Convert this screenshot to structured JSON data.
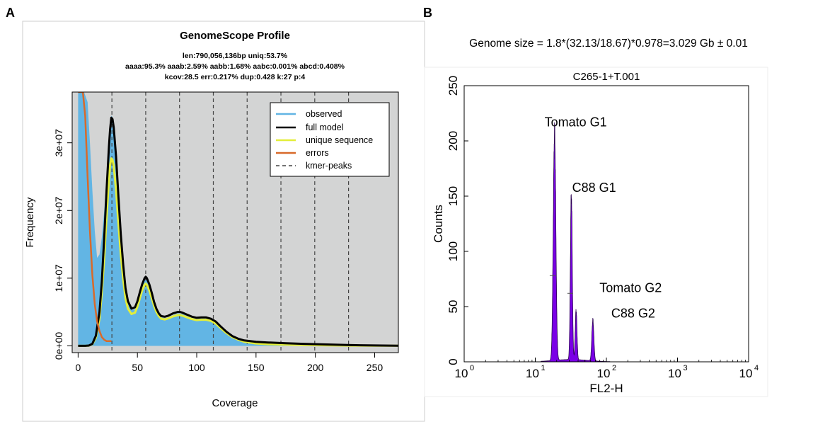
{
  "panels": {
    "a_letter": "A",
    "b_letter": "B"
  },
  "colors": {
    "observed": "#62b5e4",
    "full_model": "#000000",
    "unique_sequence": "#e3ee3a",
    "errors": "#d86a2a",
    "kmer_peaks": "#444444",
    "plot_bg": "#d3d4d4",
    "histogram": "#7a00e6",
    "histogram_edge": "#2a0050"
  },
  "chart_data": [
    {
      "type": "line",
      "title": "GenomeScope Profile",
      "info_lines": [
        "len:790,056,136bp uniq:53.7%",
        "aaaa:95.3% aaab:2.59% aabb:1.68% aabc:0.001% abcd:0.408%",
        "kcov:28.5 err:0.217%  dup:0.428  k:27 p:4"
      ],
      "xlabel": "Coverage",
      "ylabel": "Frequency",
      "xlim": [
        -5,
        270
      ],
      "ylim": [
        -1000000,
        37500000
      ],
      "xticks": [
        0,
        50,
        100,
        150,
        200,
        250
      ],
      "xtick_labels": [
        "0",
        "50",
        "100",
        "150",
        "200",
        "250"
      ],
      "yticks": [
        0,
        10000000,
        20000000,
        30000000
      ],
      "ytick_labels": [
        "0e+00",
        "1e+07",
        "2e+07",
        "3e+07"
      ],
      "grid": false,
      "legend_position": "top-right",
      "legend": [
        "observed",
        "full model",
        "unique sequence",
        "errors",
        "kmer-peaks"
      ],
      "kmer_peaks": [
        28.5,
        57,
        85.5,
        114,
        142.5,
        171,
        199.5,
        228
      ],
      "series": [
        {
          "name": "observed",
          "style": "area",
          "x": [
            0,
            3,
            5,
            8,
            10,
            12,
            14,
            16,
            18,
            20,
            22,
            24,
            26,
            27,
            28,
            29,
            30,
            32,
            34,
            36,
            38,
            40,
            42,
            45,
            48,
            50,
            52,
            54,
            56,
            57,
            58,
            60,
            62,
            64,
            66,
            68,
            70,
            73,
            76,
            80,
            84,
            86,
            88,
            92,
            96,
            100,
            104,
            108,
            112,
            116,
            120,
            125,
            130,
            135,
            140,
            150,
            160,
            175,
            190,
            210,
            230,
            250,
            270
          ],
          "y": [
            37500000,
            37500000,
            37500000,
            36000000,
            30000000,
            23000000,
            17000000,
            13000000,
            13500000,
            16000000,
            20000000,
            25000000,
            30500000,
            32500000,
            34000000,
            33800000,
            32500000,
            28000000,
            22000000,
            16500000,
            12000000,
            8500000,
            6500000,
            5300000,
            5400000,
            6300000,
            7600000,
            8900000,
            9700000,
            9800000,
            9700000,
            8900000,
            7700000,
            6300000,
            5300000,
            4600000,
            4200000,
            4100000,
            4200000,
            4550000,
            4800000,
            4800000,
            4700000,
            4400000,
            4100000,
            4000000,
            4050000,
            4050000,
            3900000,
            3500000,
            2800000,
            2000000,
            1400000,
            1000000,
            750000,
            550000,
            450000,
            350000,
            280000,
            180000,
            100000,
            50000,
            20000
          ]
        },
        {
          "name": "full model",
          "style": "line",
          "x": [
            0,
            3,
            6,
            9,
            12,
            15,
            18,
            20,
            22,
            24,
            26,
            27,
            28,
            29,
            30,
            32,
            34,
            36,
            38,
            40,
            42,
            45,
            48,
            50,
            52,
            54,
            56,
            57,
            58,
            60,
            62,
            64,
            66,
            68,
            70,
            73,
            76,
            80,
            84,
            86,
            88,
            92,
            96,
            100,
            104,
            108,
            112,
            116,
            120,
            125,
            130,
            135,
            140,
            150,
            160,
            175,
            190,
            210,
            230,
            250,
            270
          ],
          "y": [
            0,
            0,
            5000,
            50000,
            300000,
            1500000,
            5000000,
            9500000,
            16000000,
            23000000,
            29500000,
            32000000,
            33700000,
            33500000,
            32300000,
            28000000,
            22000000,
            16500000,
            12000000,
            8500000,
            6600000,
            5500000,
            5700000,
            6600000,
            7900000,
            9100000,
            10000000,
            10200000,
            10000000,
            9100000,
            7900000,
            6500000,
            5500000,
            4800000,
            4400000,
            4300000,
            4450000,
            4800000,
            5000000,
            5000000,
            4900000,
            4600000,
            4300000,
            4150000,
            4200000,
            4200000,
            4000000,
            3600000,
            2900000,
            2100000,
            1450000,
            1050000,
            800000,
            600000,
            500000,
            380000,
            300000,
            200000,
            110000,
            60000,
            30000
          ]
        },
        {
          "name": "unique sequence",
          "style": "line",
          "x": [
            0,
            3,
            6,
            9,
            12,
            15,
            18,
            20,
            22,
            24,
            26,
            27,
            28,
            29,
            30,
            32,
            34,
            36,
            38,
            40,
            42,
            45,
            48,
            50,
            52,
            54,
            56,
            57,
            58,
            60,
            62,
            64,
            66,
            68,
            70,
            73,
            76,
            80,
            84,
            86,
            88,
            92,
            96,
            100,
            104,
            108,
            112,
            116,
            120,
            125,
            130,
            135,
            140,
            150,
            160,
            175,
            190,
            210,
            230,
            250,
            270
          ],
          "y": [
            0,
            0,
            4000,
            40000,
            250000,
            1200000,
            4000000,
            7800000,
            13000000,
            19000000,
            24500000,
            26700000,
            27700000,
            27500000,
            26600000,
            23000000,
            18000000,
            13500000,
            9800000,
            7000000,
            5500000,
            4700000,
            4900000,
            5800000,
            7000000,
            8200000,
            9000000,
            9200000,
            9000000,
            8200000,
            7100000,
            5900000,
            5000000,
            4400000,
            4000000,
            3900000,
            4050000,
            4350000,
            4550000,
            4550000,
            4450000,
            4200000,
            3950000,
            3800000,
            3850000,
            3850000,
            3700000,
            3300000,
            2650000,
            1900000,
            1300000,
            900000,
            600000,
            350000,
            250000,
            180000,
            130000,
            80000,
            40000,
            20000,
            10000
          ]
        },
        {
          "name": "errors",
          "style": "line",
          "x": [
            0,
            2,
            4,
            6,
            8,
            10,
            12,
            14,
            16,
            18,
            20,
            22,
            24,
            26,
            28
          ],
          "y": [
            37500000,
            37500000,
            37500000,
            34000000,
            25000000,
            17000000,
            10500000,
            6200000,
            3600000,
            2200000,
            1300000,
            900000,
            700000,
            700000,
            700000
          ]
        }
      ]
    },
    {
      "type": "bar",
      "caption": "Genome size = 1.8*(32.13/18.67)*0.978=3.029 Gb ± 0.01",
      "title": "C265-1+T.001",
      "xlabel": "FL2-H",
      "ylabel": "Counts",
      "x_scale": "log",
      "xlim": [
        1,
        10000
      ],
      "xticks": [
        1,
        10,
        100,
        1000,
        10000
      ],
      "xtick_bases": [
        "10",
        "10",
        "10",
        "10",
        "10"
      ],
      "xtick_exponents": [
        "0",
        "1",
        "2",
        "3",
        "4"
      ],
      "ylim": [
        0,
        250
      ],
      "yticks": [
        0,
        50,
        100,
        150,
        200,
        250
      ],
      "ytick_labels": [
        "0",
        "50",
        "100",
        "150",
        "200",
        "250"
      ],
      "annotations": [
        {
          "text": "Tomato G1",
          "x": 13.5,
          "y": 213
        },
        {
          "text": "C88 G1",
          "x": 33,
          "y": 154
        },
        {
          "text": "Tomato G2",
          "x": 80,
          "y": 63
        },
        {
          "text": "C88 G2",
          "x": 117,
          "y": 40
        }
      ],
      "peaks": [
        {
          "label": "Tomato G1",
          "center": 18.67,
          "height": 207,
          "width": 0.018
        },
        {
          "label": "C88 G1",
          "center": 32.13,
          "height": 150,
          "width": 0.013
        },
        {
          "label": "Tomato G2",
          "center": 37.5,
          "height": 45,
          "width": 0.012
        },
        {
          "label": "C88 G2",
          "center": 64.5,
          "height": 37,
          "width": 0.014
        }
      ],
      "background_level": 2
    }
  ]
}
